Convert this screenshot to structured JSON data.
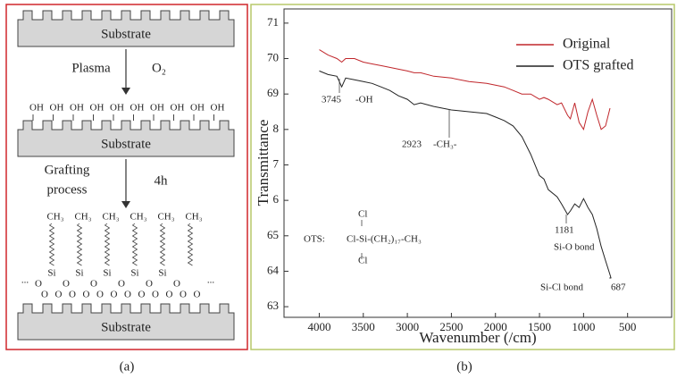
{
  "panel_a": {
    "substrate_labels": [
      "Substrate",
      "Substrate",
      "Substrate"
    ],
    "step1": "Plasma",
    "step1_gas": "O₂",
    "hydroxyls": [
      "OH",
      "OH",
      "OH",
      "OH",
      "OH",
      "OH",
      "OH",
      "OH",
      "OH",
      "OH"
    ],
    "step2": [
      "Grafting",
      "process"
    ],
    "step2_time": "4h",
    "methyls": [
      "CH₃",
      "CH₃",
      "CH₃",
      "CH₃",
      "CH₃",
      "CH₃"
    ],
    "silicons": [
      "Si",
      "Si",
      "Si",
      "Si",
      "Si"
    ],
    "oxygens_top": [
      "O",
      "O",
      "O",
      "O",
      "O",
      "O"
    ],
    "oxygens_bottom": [
      "O",
      "O",
      "O",
      "O",
      "O",
      "O",
      "O",
      "O",
      "O",
      "O",
      "O",
      "O"
    ],
    "ellipses": [
      "...",
      "..."
    ]
  },
  "captions": [
    "(a)",
    "(b)"
  ],
  "chart_data": {
    "type": "line",
    "x_label": "Wavenumber (/cm)",
    "y_label": "Transmittance",
    "x": [
      4000,
      3900,
      3800,
      3745,
      3700,
      3600,
      3500,
      3400,
      3300,
      3200,
      3100,
      3000,
      2923,
      2850,
      2700,
      2500,
      2300,
      2100,
      2000,
      1900,
      1800,
      1700,
      1600,
      1500,
      1450,
      1400,
      1300,
      1250,
      1181,
      1150,
      1100,
      1050,
      1000,
      950,
      900,
      850,
      800,
      750,
      700,
      687
    ],
    "series": [
      {
        "name": "Original",
        "color": "#c0262b",
        "values": [
          70.25,
          70.1,
          70.0,
          69.9,
          70.0,
          70.0,
          69.9,
          69.85,
          69.8,
          69.75,
          69.7,
          69.65,
          69.6,
          69.6,
          69.5,
          69.45,
          69.35,
          69.3,
          69.25,
          69.2,
          69.1,
          69.0,
          69.0,
          68.85,
          68.9,
          68.85,
          68.7,
          68.75,
          68.4,
          68.3,
          68.75,
          68.2,
          68.0,
          68.5,
          68.85,
          68.4,
          68.0,
          68.1,
          68.6,
          null
        ]
      },
      {
        "name": "OTS grafted",
        "color": "#222222",
        "values": [
          69.65,
          69.55,
          69.5,
          69.2,
          69.45,
          69.4,
          69.35,
          69.3,
          69.2,
          69.1,
          68.95,
          68.85,
          68.7,
          68.75,
          68.65,
          68.55,
          68.5,
          68.45,
          68.35,
          68.25,
          68.1,
          67.8,
          67.3,
          66.7,
          66.6,
          66.3,
          66.1,
          65.9,
          65.6,
          65.7,
          65.9,
          65.8,
          66.05,
          65.8,
          65.6,
          65.2,
          64.7,
          64.3,
          63.9,
          63.8
        ]
      }
    ],
    "xlim": [
      4400,
      0
    ],
    "xticks": [
      4000,
      3500,
      3000,
      2500,
      2000,
      1500,
      1000,
      500
    ],
    "ylim": [
      62.7,
      71.4
    ],
    "yticks": [
      71,
      70,
      69,
      {
        "value": 68,
        "label": "8"
      },
      {
        "value": 67,
        "label": "7"
      },
      {
        "value": 66,
        "label": "6"
      },
      65,
      64,
      63
    ],
    "legend": "upper right",
    "annotations": [
      "3745",
      "-OH",
      "2923",
      "-CH₃-",
      "1181",
      "Si-O bond",
      "Si-Cl bond",
      "687",
      "OTS:",
      "Cl",
      "Cl-Si-(CH₂)₁₇-CH₃",
      "Cl"
    ]
  }
}
